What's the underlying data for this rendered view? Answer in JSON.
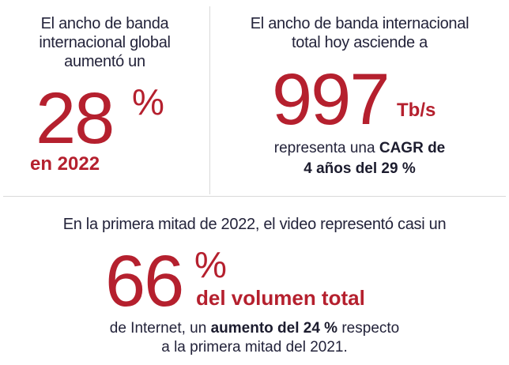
{
  "stat1": {
    "intro_lines": [
      "El ancho de banda",
      "internacional global",
      "aumentó un"
    ],
    "value": "28",
    "percent": "%",
    "subtitle": "en 2022"
  },
  "stat2": {
    "intro_lines": [
      "El ancho de banda internacional",
      "total hoy asciende a"
    ],
    "value": "997",
    "unit": "Tb/s",
    "desc_prefix": "representa una ",
    "desc_bold_1": "CAGR de",
    "desc_bold_2": "4 años del 29 %"
  },
  "stat3": {
    "intro": "En la primera mitad de 2022, el video representó casi un",
    "value": "66",
    "percent": "%",
    "subtitle": "del volumen total",
    "desc_prefix": "de Internet, un ",
    "desc_bold": "aumento del 24 %",
    "desc_suffix": " respecto",
    "desc_line2": "a la primera mitad del 2021."
  },
  "colors": {
    "accent": "#b5202e",
    "text": "#1c1c2e",
    "divider": "#d9d9d9"
  }
}
